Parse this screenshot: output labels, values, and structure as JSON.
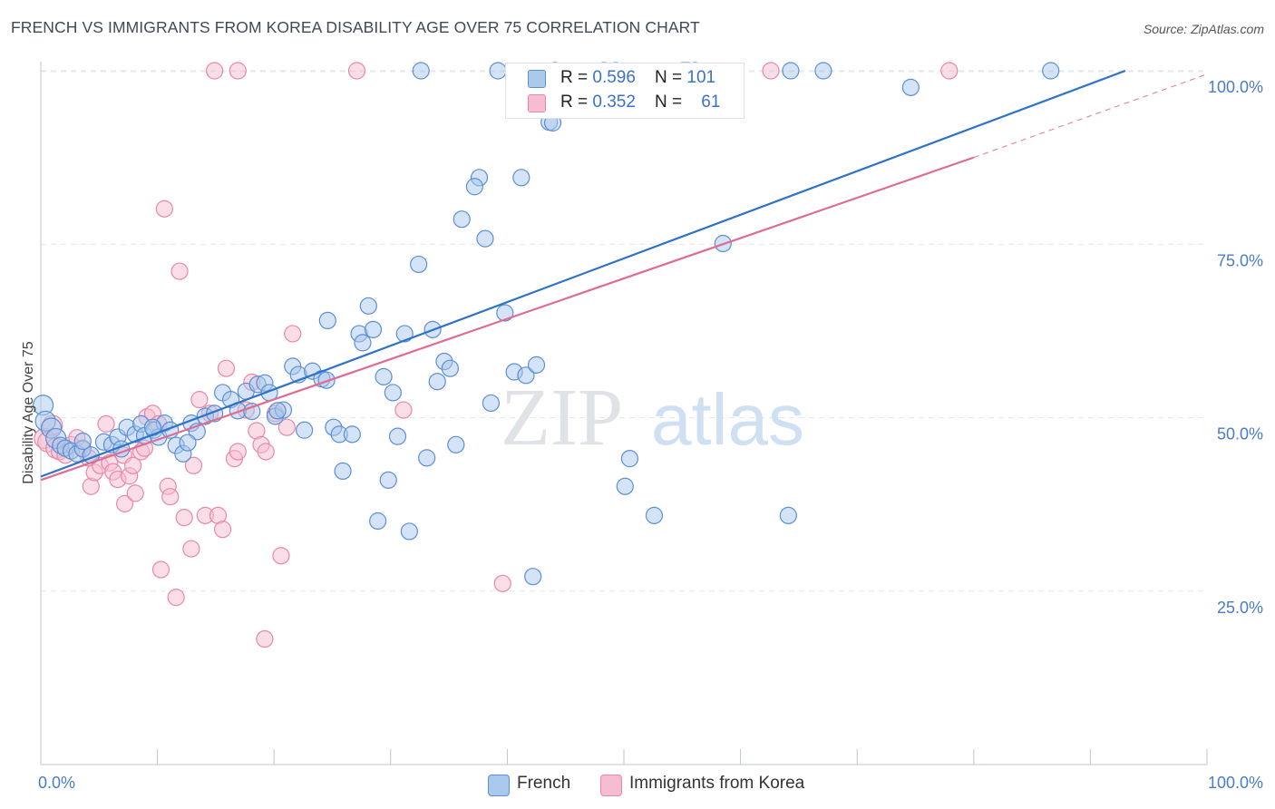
{
  "title": "FRENCH VS IMMIGRANTS FROM KOREA DISABILITY AGE OVER 75 CORRELATION CHART",
  "source": "Source: ZipAtlas.com",
  "watermark": {
    "part1": "ZIP",
    "part2": "atlas"
  },
  "legend": {
    "french": {
      "r_label": "R = ",
      "r_value": "0.596",
      "n_label": "N = ",
      "n_value": "101"
    },
    "korea": {
      "r_label": "R = ",
      "r_value": "0.352",
      "n_label": "N = ",
      "n_value": "61"
    }
  },
  "colors": {
    "french_fill": "#a9c8ec",
    "french_stroke": "#5b8fd6",
    "french_line": "#2f72c9",
    "korea_fill": "#f6bdd0",
    "korea_stroke": "#e987a8",
    "korea_line": "#e06b93",
    "tick_text": "#4a7cc9"
  },
  "chart_data": {
    "type": "scatter",
    "title": "FRENCH VS IMMIGRANTS FROM KOREA DISABILITY AGE OVER 75 CORRELATION CHART",
    "xlabel": "",
    "ylabel": "Disability Age Over 75",
    "xlim": [
      0,
      100
    ],
    "ylim": [
      0,
      102
    ],
    "x_tick_labels": [
      "0.0%",
      "100.0%"
    ],
    "y_ticks": [
      25,
      50,
      75,
      100
    ],
    "y_tick_labels": [
      "25.0%",
      "50.0%",
      "75.0%",
      "100.0%"
    ],
    "grid": true,
    "series": [
      {
        "name": "French",
        "trend": {
          "x": [
            0,
            93
          ],
          "y": [
            41.5,
            100
          ]
        },
        "points": [
          [
            0.2,
            51.8
          ],
          [
            0.4,
            49.5
          ],
          [
            0.9,
            48.5
          ],
          [
            1.3,
            47
          ],
          [
            1.7,
            46
          ],
          [
            2.1,
            45.6
          ],
          [
            2.6,
            45.2
          ],
          [
            3.1,
            44.8
          ],
          [
            3.6,
            45.5
          ],
          [
            4.3,
            44.6
          ],
          [
            5.4,
            46.5
          ],
          [
            6.1,
            46.1
          ],
          [
            6.6,
            47.2
          ],
          [
            7.4,
            48.6
          ],
          [
            8.1,
            47.6
          ],
          [
            8.6,
            49.1
          ],
          [
            8.9,
            47.4
          ],
          [
            9.7,
            48.2
          ],
          [
            10.1,
            47.2
          ],
          [
            10.6,
            49.2
          ],
          [
            11.1,
            48.2
          ],
          [
            11.6,
            46
          ],
          [
            12.2,
            44.8
          ],
          [
            12.9,
            49.2
          ],
          [
            13.4,
            48
          ],
          [
            14.1,
            50.2
          ],
          [
            14.9,
            50.6
          ],
          [
            15.6,
            53.6
          ],
          [
            16.3,
            52.6
          ],
          [
            16.9,
            51
          ],
          [
            17.6,
            53.8
          ],
          [
            18.1,
            50.9
          ],
          [
            18.6,
            54.8
          ],
          [
            19.2,
            55
          ],
          [
            19.6,
            53.6
          ],
          [
            20.1,
            50.2
          ],
          [
            20.8,
            51.1
          ],
          [
            21.6,
            57.4
          ],
          [
            22.1,
            56.2
          ],
          [
            22.6,
            48.2
          ],
          [
            23.3,
            56.7
          ],
          [
            24.1,
            55.6
          ],
          [
            24.5,
            55.4
          ],
          [
            25.1,
            48.6
          ],
          [
            24.6,
            64
          ],
          [
            25.6,
            47.6
          ],
          [
            25.9,
            42.3
          ],
          [
            26.7,
            47.6
          ],
          [
            27.3,
            62.1
          ],
          [
            27.6,
            60.8
          ],
          [
            28.1,
            66.1
          ],
          [
            28.5,
            62.7
          ],
          [
            28.9,
            35.1
          ],
          [
            29.4,
            55.9
          ],
          [
            29.8,
            41
          ],
          [
            30.2,
            53.6
          ],
          [
            30.6,
            47.3
          ],
          [
            31.2,
            62.1
          ],
          [
            31.6,
            33.6
          ],
          [
            32.4,
            72.1
          ],
          [
            33.1,
            44.2
          ],
          [
            33.6,
            62.7
          ],
          [
            34,
            55.2
          ],
          [
            34.6,
            58.1
          ],
          [
            35.1,
            57.1
          ],
          [
            35.6,
            46.1
          ],
          [
            36.1,
            78.6
          ],
          [
            37.6,
            84.6
          ],
          [
            37.2,
            83.3
          ],
          [
            38.1,
            75.8
          ],
          [
            38.6,
            52.1
          ],
          [
            39.2,
            100
          ],
          [
            39.8,
            65.1
          ],
          [
            40.6,
            56.6
          ],
          [
            41.2,
            84.6
          ],
          [
            41.6,
            56.1
          ],
          [
            42.2,
            27.1
          ],
          [
            42.5,
            57.6
          ],
          [
            43.6,
            92.6
          ],
          [
            43.9,
            92.5
          ],
          [
            44.1,
            100
          ],
          [
            48.3,
            100
          ],
          [
            49.3,
            100
          ],
          [
            50.1,
            40.1
          ],
          [
            50.5,
            44.1
          ],
          [
            52.6,
            35.9
          ],
          [
            55.1,
            100
          ],
          [
            55.5,
            100
          ],
          [
            56.1,
            100
          ],
          [
            58.5,
            75.1
          ],
          [
            64.1,
            35.9
          ],
          [
            64.3,
            100
          ],
          [
            67.1,
            100
          ],
          [
            74.6,
            97.6
          ],
          [
            86.6,
            100
          ],
          [
            32.6,
            100
          ],
          [
            20.3,
            51
          ],
          [
            6.9,
            45.5
          ],
          [
            9.6,
            48.6
          ],
          [
            12.6,
            46.4
          ],
          [
            3.6,
            46.6
          ]
        ]
      },
      {
        "name": "Immigrants from Korea",
        "trend": {
          "x": [
            0,
            80
          ],
          "y": [
            41,
            87.5
          ]
        },
        "trend_extension": {
          "x": [
            80,
            100
          ],
          "y": [
            87.5,
            99.5
          ]
        },
        "points": [
          [
            0.3,
            47
          ],
          [
            0.6,
            46.5
          ],
          [
            1,
            48.9
          ],
          [
            1.3,
            45.6
          ],
          [
            1.6,
            45.1
          ],
          [
            2.1,
            44.6
          ],
          [
            2.6,
            46.1
          ],
          [
            3.1,
            47.1
          ],
          [
            3.6,
            45.6
          ],
          [
            4.1,
            44.2
          ],
          [
            4.3,
            40.1
          ],
          [
            4.6,
            42.1
          ],
          [
            5.1,
            43.1
          ],
          [
            5.6,
            49.1
          ],
          [
            5.9,
            43.5
          ],
          [
            6.2,
            42.2
          ],
          [
            6.6,
            41.1
          ],
          [
            7.1,
            44.6
          ],
          [
            7.2,
            37.6
          ],
          [
            7.6,
            41.6
          ],
          [
            7.9,
            43.1
          ],
          [
            8.1,
            39.1
          ],
          [
            8.6,
            45.1
          ],
          [
            8.9,
            45.6
          ],
          [
            9.1,
            50.1
          ],
          [
            9.6,
            50.6
          ],
          [
            10.1,
            49.1
          ],
          [
            10.3,
            28.1
          ],
          [
            10.6,
            80.1
          ],
          [
            10.9,
            40.1
          ],
          [
            11.1,
            38.6
          ],
          [
            11.6,
            24.1
          ],
          [
            11.9,
            71.1
          ],
          [
            12.3,
            35.6
          ],
          [
            12.9,
            31.1
          ],
          [
            13.6,
            52.6
          ],
          [
            14.1,
            35.9
          ],
          [
            14.5,
            50.6
          ],
          [
            14.9,
            100
          ],
          [
            15.2,
            35.9
          ],
          [
            15.6,
            33.9
          ],
          [
            15.9,
            57.1
          ],
          [
            16.6,
            44.1
          ],
          [
            16.9,
            100
          ],
          [
            16.9,
            45.1
          ],
          [
            17.6,
            51.1
          ],
          [
            18.1,
            55.1
          ],
          [
            18.5,
            48.1
          ],
          [
            18.9,
            46.1
          ],
          [
            19.2,
            18.1
          ],
          [
            19.3,
            45.1
          ],
          [
            20.1,
            50.6
          ],
          [
            20.6,
            30.1
          ],
          [
            21.6,
            62.1
          ],
          [
            21.1,
            48.6
          ],
          [
            27.1,
            100
          ],
          [
            31.1,
            51.1
          ],
          [
            39.6,
            26.1
          ],
          [
            62.6,
            100
          ],
          [
            77.9,
            100
          ],
          [
            13.1,
            43.1
          ]
        ]
      }
    ]
  }
}
